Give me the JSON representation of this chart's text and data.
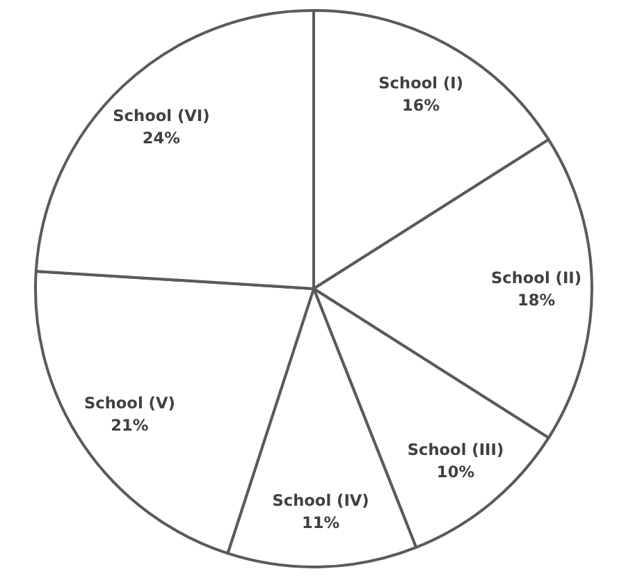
{
  "chart_data": {
    "type": "pie",
    "categories": [
      "School (I)",
      "School (II)",
      "School (III)",
      "School (IV)",
      "School (V)",
      "School (VI)"
    ],
    "values": [
      16,
      18,
      10,
      11,
      21,
      24
    ],
    "colors": [
      "#ffffff",
      "#ffffff",
      "#ffffff",
      "#ffffff",
      "#ffffff",
      "#ffffff"
    ],
    "value_labels": [
      "16%",
      "18%",
      "10%",
      "11%",
      "21%",
      "24%"
    ]
  }
}
